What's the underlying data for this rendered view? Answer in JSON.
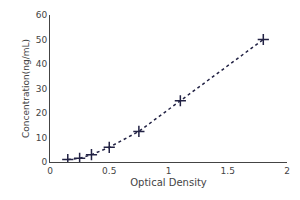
{
  "chart_data": {
    "type": "line",
    "x": [
      0.15,
      0.25,
      0.35,
      0.5,
      0.75,
      1.1,
      1.8
    ],
    "series": [
      {
        "values": [
          1.0,
          1.5,
          3.0,
          6.0,
          12.5,
          25.0,
          50.0
        ],
        "color": "#222244",
        "marker": "plus",
        "line_style": "dotted"
      }
    ],
    "x_label": "Optical Density",
    "y_label": "Concentration(ng/mL)",
    "xlim": [
      0,
      2
    ],
    "ylim": [
      0,
      60
    ],
    "xticks": [
      0,
      0.5,
      1,
      1.5,
      2
    ],
    "yticks": [
      0,
      10,
      20,
      30,
      40,
      50,
      60
    ],
    "grid": false
  }
}
